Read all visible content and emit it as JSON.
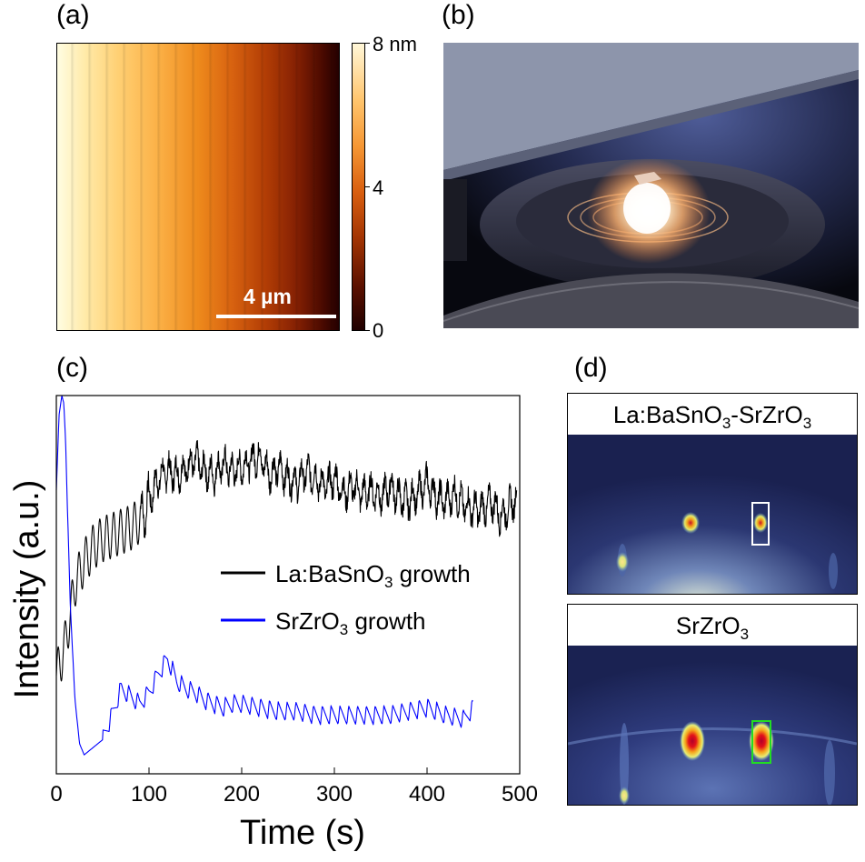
{
  "labels": {
    "a": "(a)",
    "b": "(b)",
    "c": "(c)",
    "d": "(d)"
  },
  "afm": {
    "scale_bar": "4 µm",
    "colorbar_ticks": [
      {
        "label": "8 nm",
        "value": 8
      },
      {
        "label": "4",
        "value": 4
      },
      {
        "label": "0",
        "value": 0
      }
    ]
  },
  "rheed": {
    "top": {
      "title_main": "La:BaSnO",
      "title_sub1": "3",
      "title_mid": "-SrZrO",
      "title_sub2": "3"
    },
    "bottom": {
      "title_main": "SrZrO",
      "title_sub1": "3"
    }
  },
  "chart_data": {
    "type": "line",
    "xlabel": "Time (s)",
    "ylabel": "Intensity (a.u.)",
    "xlim": [
      0,
      500
    ],
    "ylim": [
      0,
      1
    ],
    "xticks": [
      0,
      100,
      200,
      300,
      400,
      500
    ],
    "yticks_shown": false,
    "legend_position": "center-right",
    "series": [
      {
        "name": "La:BaSnO3 growth",
        "name_main": "La:BaSnO",
        "name_sub": "3",
        "name_rest": " growth",
        "color": "#000000",
        "x": [
          0,
          5,
          10,
          15,
          20,
          30,
          40,
          50,
          60,
          70,
          80,
          90,
          100,
          110,
          120,
          130,
          140,
          150,
          160,
          170,
          180,
          190,
          200,
          210,
          220,
          230,
          240,
          250,
          260,
          270,
          280,
          290,
          300,
          310,
          320,
          330,
          340,
          350,
          360,
          370,
          380,
          390,
          400,
          410,
          420,
          430,
          440,
          450,
          460,
          470,
          480,
          490,
          497
        ],
        "y": [
          0.26,
          0.3,
          0.35,
          0.42,
          0.5,
          0.56,
          0.6,
          0.62,
          0.63,
          0.64,
          0.65,
          0.67,
          0.72,
          0.78,
          0.8,
          0.79,
          0.81,
          0.83,
          0.8,
          0.79,
          0.82,
          0.8,
          0.81,
          0.83,
          0.84,
          0.79,
          0.81,
          0.78,
          0.77,
          0.8,
          0.78,
          0.76,
          0.78,
          0.74,
          0.76,
          0.74,
          0.75,
          0.73,
          0.76,
          0.73,
          0.72,
          0.74,
          0.77,
          0.73,
          0.72,
          0.74,
          0.71,
          0.7,
          0.7,
          0.72,
          0.68,
          0.71,
          0.73
        ]
      },
      {
        "name": "SrZrO3 growth",
        "name_main": "SrZrO",
        "name_sub": "3",
        "name_rest": " growth",
        "color": "#0000ff",
        "x": [
          0,
          3,
          6,
          8,
          10,
          12,
          15,
          20,
          25,
          30,
          40,
          50,
          60,
          70,
          80,
          90,
          100,
          110,
          120,
          130,
          140,
          150,
          160,
          170,
          180,
          190,
          200,
          220,
          240,
          260,
          280,
          300,
          320,
          340,
          360,
          380,
          400,
          420,
          440,
          450
        ],
        "y": [
          0.75,
          0.95,
          1.0,
          0.98,
          0.88,
          0.7,
          0.45,
          0.2,
          0.08,
          0.05,
          0.07,
          0.09,
          0.15,
          0.22,
          0.2,
          0.18,
          0.21,
          0.26,
          0.3,
          0.24,
          0.22,
          0.21,
          0.19,
          0.18,
          0.17,
          0.18,
          0.18,
          0.17,
          0.16,
          0.16,
          0.15,
          0.15,
          0.15,
          0.15,
          0.15,
          0.16,
          0.17,
          0.15,
          0.14,
          0.17
        ]
      }
    ]
  }
}
